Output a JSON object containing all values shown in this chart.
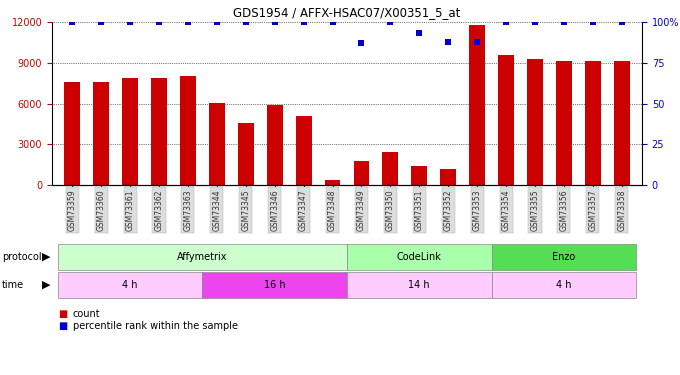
{
  "title": "GDS1954 / AFFX-HSAC07/X00351_5_at",
  "samples": [
    "GSM73359",
    "GSM73360",
    "GSM73361",
    "GSM73362",
    "GSM73363",
    "GSM73344",
    "GSM73345",
    "GSM73346",
    "GSM73347",
    "GSM73348",
    "GSM73349",
    "GSM73350",
    "GSM73351",
    "GSM73352",
    "GSM73353",
    "GSM73354",
    "GSM73355",
    "GSM73356",
    "GSM73357",
    "GSM73358"
  ],
  "bar_counts": [
    7600,
    7550,
    7900,
    7850,
    8000,
    6050,
    4600,
    5900,
    5100,
    400,
    1800,
    2400,
    1400,
    1200,
    11800,
    9600,
    9250,
    9150,
    9150,
    9150
  ],
  "percentile": [
    100,
    100,
    100,
    100,
    100,
    100,
    100,
    100,
    100,
    100,
    87,
    100,
    93,
    88,
    88,
    100,
    100,
    100,
    100,
    100
  ],
  "ylim_left": [
    0,
    12000
  ],
  "ylim_right": [
    0,
    100
  ],
  "yticks_left": [
    0,
    3000,
    6000,
    9000,
    12000
  ],
  "yticks_right": [
    0,
    25,
    50,
    75,
    100
  ],
  "bar_color": "#cc0000",
  "dot_color": "#0000cc",
  "protocol_groups": [
    {
      "label": "Affymetrix",
      "start": 0,
      "end": 9,
      "color": "#ccffcc"
    },
    {
      "label": "CodeLink",
      "start": 10,
      "end": 14,
      "color": "#aaffaa"
    },
    {
      "label": "Enzo",
      "start": 15,
      "end": 19,
      "color": "#55dd55"
    }
  ],
  "time_groups": [
    {
      "label": "4 h",
      "start": 0,
      "end": 4,
      "color": "#ffccff"
    },
    {
      "label": "16 h",
      "start": 5,
      "end": 9,
      "color": "#ee44ee"
    },
    {
      "label": "14 h",
      "start": 10,
      "end": 14,
      "color": "#ffccff"
    },
    {
      "label": "4 h",
      "start": 15,
      "end": 19,
      "color": "#ffccff"
    }
  ],
  "bg_color": "#ffffff"
}
